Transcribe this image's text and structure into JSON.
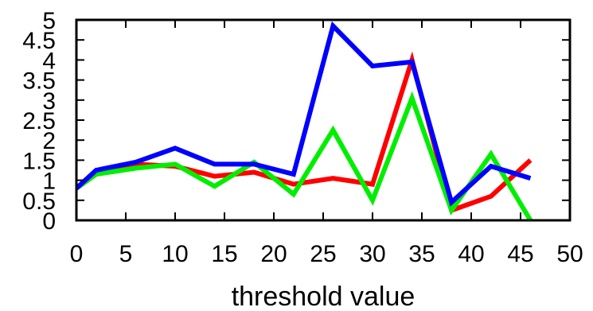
{
  "chart_data": {
    "type": "line",
    "title": "",
    "xlabel": "threshold value",
    "ylabel": "",
    "xlim": [
      0,
      50
    ],
    "ylim": [
      0,
      5
    ],
    "xticks": [
      0,
      5,
      10,
      15,
      20,
      25,
      30,
      35,
      40,
      45,
      50
    ],
    "xtick_labels": [
      "0",
      "5",
      "10",
      "15",
      "20",
      "25",
      "30",
      "35",
      "40",
      "45",
      "50"
    ],
    "yticks": [
      0,
      0.5,
      1,
      1.5,
      2,
      2.5,
      3,
      3.5,
      4,
      4.5,
      5
    ],
    "ytick_labels": [
      "0",
      "0.5",
      "1",
      "1.5",
      "2",
      "2.5",
      "3",
      "3.5",
      "4",
      "4.5",
      "5"
    ],
    "grid": false,
    "legend": "none",
    "series": [
      {
        "color": "#ff0000",
        "x": [
          0,
          2,
          6,
          10,
          14,
          18,
          22,
          26,
          30,
          34,
          38,
          42,
          46
        ],
        "y": [
          0.8,
          1.15,
          1.4,
          1.35,
          1.1,
          1.2,
          0.9,
          1.05,
          0.9,
          4.0,
          0.25,
          0.6,
          1.5
        ]
      },
      {
        "color": "#00ee00",
        "x": [
          0,
          2,
          6,
          10,
          14,
          18,
          22,
          26,
          30,
          34,
          38,
          42,
          46
        ],
        "y": [
          0.8,
          1.15,
          1.3,
          1.4,
          0.85,
          1.45,
          0.65,
          2.25,
          0.5,
          3.05,
          0.25,
          1.65,
          0.0
        ]
      },
      {
        "color": "#0000ff",
        "x": [
          0,
          2,
          6,
          10,
          14,
          18,
          22,
          26,
          30,
          34,
          38,
          42,
          46
        ],
        "y": [
          0.8,
          1.25,
          1.45,
          1.8,
          1.4,
          1.4,
          1.15,
          4.85,
          3.85,
          3.95,
          0.45,
          1.35,
          1.05
        ]
      }
    ]
  }
}
